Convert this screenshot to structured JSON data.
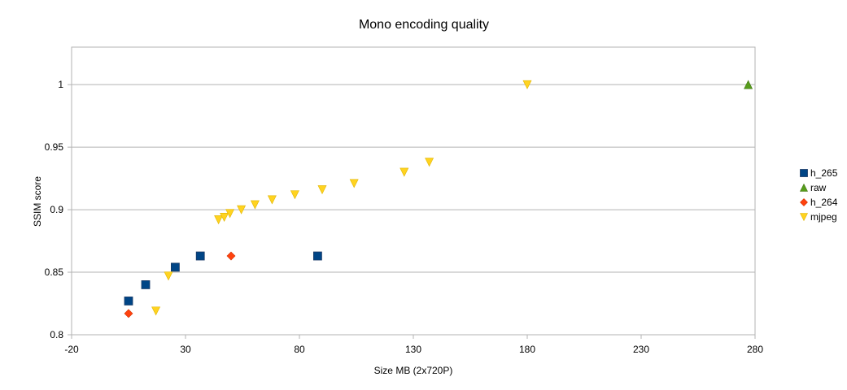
{
  "chart_data": {
    "type": "scatter",
    "title": "Mono encoding quality",
    "xlabel": "Size MB (2x720P)",
    "ylabel": "SSIM score",
    "xlim": [
      -20,
      280
    ],
    "ylim": [
      0.8,
      1.03
    ],
    "x_ticks": [
      -20,
      30,
      80,
      130,
      180,
      230,
      280
    ],
    "y_ticks": [
      0.8,
      0.85,
      0.9,
      0.95,
      1
    ],
    "y_tick_labels": [
      "0.8",
      "0.85",
      "0.9",
      "0.95",
      "1"
    ],
    "grid": "horizontal",
    "legend_position": "right",
    "series": [
      {
        "name": "h_265",
        "marker": "square",
        "color": "#004586",
        "points": [
          [
            5,
            0.827
          ],
          [
            12.5,
            0.84
          ],
          [
            25.5,
            0.854
          ],
          [
            36.5,
            0.863
          ],
          [
            88,
            0.863
          ]
        ]
      },
      {
        "name": "raw",
        "marker": "triangle-up",
        "color": "#579d1c",
        "points": [
          [
            277,
            1.0
          ]
        ]
      },
      {
        "name": "h_264",
        "marker": "diamond",
        "color": "#ff420e",
        "points": [
          [
            5,
            0.817
          ],
          [
            50,
            0.863
          ]
        ]
      },
      {
        "name": "mjpeg",
        "marker": "triangle-down",
        "color": "#ffd320",
        "points": [
          [
            17,
            0.819
          ],
          [
            22.5,
            0.847
          ],
          [
            44.5,
            0.892
          ],
          [
            47,
            0.894
          ],
          [
            49.5,
            0.897
          ],
          [
            54.5,
            0.9
          ],
          [
            60.5,
            0.904
          ],
          [
            68,
            0.908
          ],
          [
            78,
            0.912
          ],
          [
            90,
            0.916
          ],
          [
            104,
            0.921
          ],
          [
            126,
            0.93
          ],
          [
            137,
            0.938
          ],
          [
            180,
            1.0
          ]
        ]
      }
    ]
  }
}
